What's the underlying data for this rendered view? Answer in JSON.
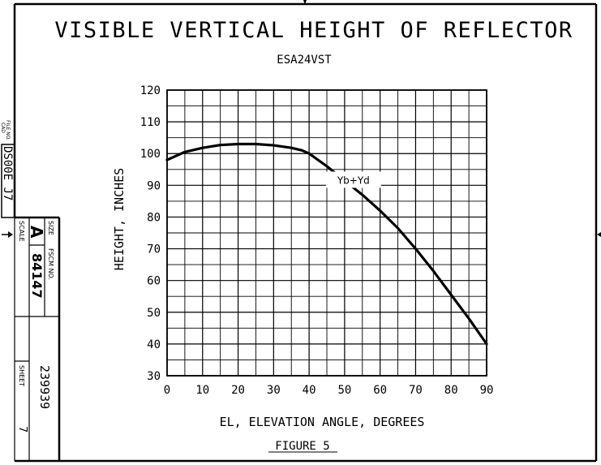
{
  "chart_data": {
    "type": "line",
    "title": "VISIBLE VERTICAL HEIGHT OF REFLECTOR",
    "subtitle": "ESA24VST",
    "xlabel": "EL, ELEVATION ANGLE, DEGREES",
    "ylabel": "HEIGHT, INCHES",
    "caption": "FIGURE 5",
    "xlim": [
      0,
      90
    ],
    "ylim": [
      30,
      120
    ],
    "x_ticks": [
      0,
      10,
      20,
      30,
      40,
      50,
      60,
      70,
      80,
      90
    ],
    "y_ticks": [
      30,
      40,
      50,
      60,
      70,
      80,
      90,
      100,
      110,
      120
    ],
    "grid": true,
    "series": [
      {
        "name": "Yb+Yd",
        "x": [
          0,
          5,
          10,
          15,
          20,
          25,
          30,
          35,
          38,
          40,
          45,
          50,
          55,
          60,
          65,
          70,
          75,
          80,
          85,
          90
        ],
        "values": [
          98,
          100.5,
          101.8,
          102.7,
          103,
          103,
          102.6,
          101.8,
          101,
          100,
          96,
          91.5,
          87,
          82,
          76.5,
          70,
          63,
          55.5,
          48,
          40
        ]
      }
    ]
  },
  "title_block": {
    "file_label": "FILE NO.",
    "cad_label": "CAD",
    "file_no": "DS00E_J7",
    "size_label": "SIZE",
    "size_value": "A",
    "fscm_label": "FSCM NO.",
    "fscm_value": "84147",
    "scale_label": "SCALE",
    "sheet_label": "SHEET",
    "sheet_value": "7",
    "doc_number": "239939"
  }
}
